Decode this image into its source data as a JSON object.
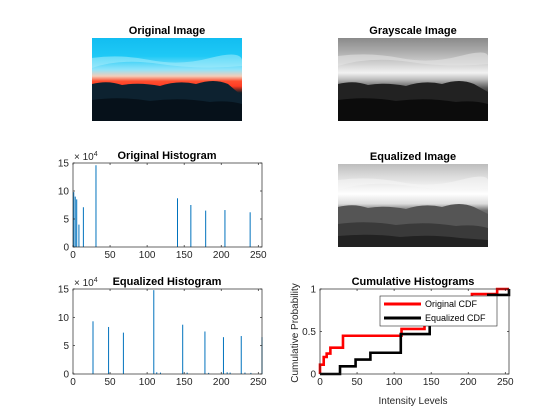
{
  "images": [
    {
      "title": "Original Image",
      "kind": "rgb"
    },
    {
      "title": "Grayscale Image",
      "kind": "gray"
    },
    {
      "title": "Equalized Image",
      "kind": "equalized"
    }
  ],
  "colors": {
    "sky_top": "#14c4f4",
    "sky_light": "#8fe6fb",
    "sunset_orange": "#ff4a2a",
    "sunset_red": "#e8381e",
    "mountain_dark": "#0d2230",
    "mountain_mid": "#1a3a4a",
    "ground": "#050a0e",
    "hist_bar": "#0072bd",
    "cdf_original": "#ff0000",
    "cdf_equalized": "#000000",
    "axes": "#262626"
  },
  "chart_data": [
    {
      "type": "bar",
      "title": "Original Histogram",
      "xlim": [
        0,
        255
      ],
      "ylim": [
        0,
        150000
      ],
      "ytick_labels": [
        "0",
        "5",
        "10",
        "15"
      ],
      "xtick_labels": [
        "0",
        "50",
        "100",
        "150",
        "200",
        "250"
      ],
      "exponent_label": "× 10",
      "exponent_power": "4",
      "bars": [
        {
          "x": 1,
          "y": 98000
        },
        {
          "x": 3,
          "y": 90000
        },
        {
          "x": 5,
          "y": 85000
        },
        {
          "x": 8,
          "y": 40000
        },
        {
          "x": 14,
          "y": 71000
        },
        {
          "x": 31,
          "y": 146000
        },
        {
          "x": 141,
          "y": 87000
        },
        {
          "x": 159,
          "y": 75000
        },
        {
          "x": 179,
          "y": 65000
        },
        {
          "x": 205,
          "y": 66000
        },
        {
          "x": 239,
          "y": 62000
        }
      ]
    },
    {
      "type": "bar",
      "title": "Equalized Histogram",
      "xlim": [
        0,
        255
      ],
      "ylim": [
        0,
        150000
      ],
      "ytick_labels": [
        "0",
        "5",
        "10",
        "15"
      ],
      "xtick_labels": [
        "0",
        "50",
        "100",
        "150",
        "200",
        "250"
      ],
      "exponent_label": "× 10",
      "exponent_power": "4",
      "bars": [
        {
          "x": 27,
          "y": 93000
        },
        {
          "x": 48,
          "y": 83000
        },
        {
          "x": 68,
          "y": 73000
        },
        {
          "x": 109,
          "y": 148000
        },
        {
          "x": 113,
          "y": 3000
        },
        {
          "x": 118,
          "y": 2500
        },
        {
          "x": 148,
          "y": 87000
        },
        {
          "x": 154,
          "y": 2500
        },
        {
          "x": 178,
          "y": 75000
        },
        {
          "x": 183,
          "y": 2000
        },
        {
          "x": 203,
          "y": 65000
        },
        {
          "x": 208,
          "y": 3000
        },
        {
          "x": 212,
          "y": 2500
        },
        {
          "x": 227,
          "y": 67000
        },
        {
          "x": 232,
          "y": 2500
        },
        {
          "x": 240,
          "y": 2000
        },
        {
          "x": 255,
          "y": 65000
        }
      ]
    },
    {
      "type": "line",
      "title": "Cumulative Histograms",
      "xlabel": "Intensity Levels",
      "ylabel": "Cumulative Probability",
      "xlim": [
        0,
        255
      ],
      "ylim": [
        0,
        1
      ],
      "ytick_labels": [
        "0",
        "0.5",
        "1"
      ],
      "xtick_labels": [
        "0",
        "50",
        "100",
        "150",
        "200",
        "250"
      ],
      "legend_position": "top-right",
      "series": [
        {
          "name": "Original CDF",
          "color": "#ff0000",
          "points": [
            [
              0,
              0.0
            ],
            [
              0,
              0.11
            ],
            [
              5,
              0.11
            ],
            [
              5,
              0.2
            ],
            [
              9,
              0.2
            ],
            [
              9,
              0.24
            ],
            [
              14,
              0.24
            ],
            [
              14,
              0.31
            ],
            [
              31,
              0.31
            ],
            [
              31,
              0.45
            ],
            [
              110,
              0.45
            ],
            [
              110,
              0.53
            ],
            [
              141,
              0.53
            ],
            [
              141,
              0.62
            ],
            [
              159,
              0.62
            ],
            [
              159,
              0.69
            ],
            [
              179,
              0.69
            ],
            [
              179,
              0.76
            ],
            [
              205,
              0.76
            ],
            [
              205,
              0.94
            ],
            [
              239,
              0.94
            ],
            [
              239,
              1.0
            ],
            [
              255,
              1.0
            ]
          ]
        },
        {
          "name": "Equalized CDF",
          "color": "#000000",
          "points": [
            [
              0,
              0.0
            ],
            [
              27,
              0.0
            ],
            [
              27,
              0.09
            ],
            [
              48,
              0.09
            ],
            [
              48,
              0.17
            ],
            [
              68,
              0.17
            ],
            [
              68,
              0.25
            ],
            [
              109,
              0.25
            ],
            [
              109,
              0.47
            ],
            [
              148,
              0.47
            ],
            [
              148,
              0.61
            ],
            [
              178,
              0.61
            ],
            [
              178,
              0.69
            ],
            [
              203,
              0.69
            ],
            [
              203,
              0.76
            ],
            [
              227,
              0.76
            ],
            [
              227,
              0.93
            ],
            [
              255,
              0.93
            ],
            [
              255,
              1.0
            ]
          ]
        }
      ]
    }
  ]
}
